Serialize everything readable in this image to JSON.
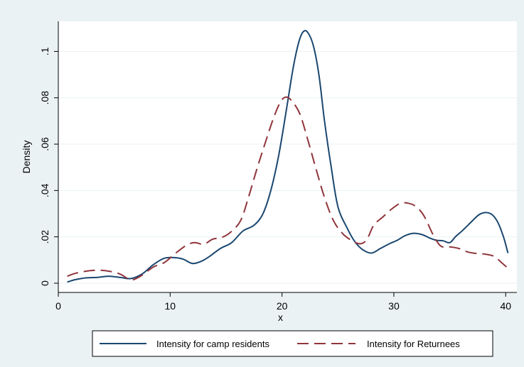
{
  "chart_data": {
    "type": "line",
    "title": "",
    "xlabel": "x",
    "ylabel": "Density",
    "xlim": [
      0,
      41
    ],
    "ylim": [
      -0.004,
      0.113
    ],
    "x_ticks": [
      0,
      10,
      20,
      30,
      40
    ],
    "x_tick_labels": [
      "0",
      "10",
      "20",
      "30",
      "40"
    ],
    "y_ticks": [
      0,
      0.02,
      0.04,
      0.06,
      0.08,
      0.1
    ],
    "y_tick_labels": [
      "0",
      ".02",
      ".04",
      ".06",
      ".08",
      ".1"
    ],
    "grid": true,
    "legend_position": "bottom",
    "colors": {
      "background": "#eaf2f3",
      "plot": "#ffffff",
      "grid": "#eaf2f3"
    },
    "series": [
      {
        "name": "Intensity for camp residents",
        "color": "#1a476f",
        "dash": "solid",
        "points": [
          [
            0.8,
            0.0005
          ],
          [
            1.5,
            0.0015
          ],
          [
            2.5,
            0.0023
          ],
          [
            3.5,
            0.0025
          ],
          [
            4.5,
            0.003
          ],
          [
            5.5,
            0.0025
          ],
          [
            6.5,
            0.002
          ],
          [
            7.5,
            0.004
          ],
          [
            8.5,
            0.008
          ],
          [
            9.5,
            0.0108
          ],
          [
            10.5,
            0.011
          ],
          [
            11.2,
            0.0103
          ],
          [
            12,
            0.0085
          ],
          [
            12.8,
            0.0095
          ],
          [
            13.5,
            0.0115
          ],
          [
            14.5,
            0.015
          ],
          [
            15.5,
            0.0175
          ],
          [
            16.5,
            0.0225
          ],
          [
            17.5,
            0.025
          ],
          [
            18.3,
            0.03
          ],
          [
            19,
            0.04
          ],
          [
            19.7,
            0.055
          ],
          [
            20.4,
            0.075
          ],
          [
            21,
            0.093
          ],
          [
            21.5,
            0.104
          ],
          [
            21.9,
            0.1085
          ],
          [
            22.3,
            0.1082
          ],
          [
            22.8,
            0.1025
          ],
          [
            23.3,
            0.09
          ],
          [
            23.8,
            0.07
          ],
          [
            24.4,
            0.05
          ],
          [
            25,
            0.033
          ],
          [
            25.8,
            0.024
          ],
          [
            26.5,
            0.018
          ],
          [
            27.2,
            0.0145
          ],
          [
            28,
            0.013
          ],
          [
            28.8,
            0.015
          ],
          [
            29.6,
            0.017
          ],
          [
            30.3,
            0.0185
          ],
          [
            31,
            0.0205
          ],
          [
            31.7,
            0.0215
          ],
          [
            32.5,
            0.021
          ],
          [
            33.2,
            0.0195
          ],
          [
            33.8,
            0.0185
          ],
          [
            34.4,
            0.0183
          ],
          [
            35,
            0.0175
          ],
          [
            35.5,
            0.02
          ],
          [
            36.2,
            0.023
          ],
          [
            37,
            0.0268
          ],
          [
            37.6,
            0.0295
          ],
          [
            38.2,
            0.0305
          ],
          [
            38.8,
            0.0295
          ],
          [
            39.3,
            0.0262
          ],
          [
            39.8,
            0.02
          ],
          [
            40.2,
            0.013
          ]
        ]
      },
      {
        "name": "Intensity for Returnees",
        "color": "#90353b",
        "dash": "long-dash",
        "points": [
          [
            0.8,
            0.003
          ],
          [
            1.5,
            0.0042
          ],
          [
            2.5,
            0.0052
          ],
          [
            3.5,
            0.0056
          ],
          [
            4.5,
            0.0052
          ],
          [
            5.5,
            0.004
          ],
          [
            6.2,
            0.002
          ],
          [
            6.7,
            0.0015
          ],
          [
            7.5,
            0.0035
          ],
          [
            8.5,
            0.007
          ],
          [
            9.5,
            0.009
          ],
          [
            10.5,
            0.013
          ],
          [
            11.5,
            0.0165
          ],
          [
            12.2,
            0.0175
          ],
          [
            13,
            0.0168
          ],
          [
            13.8,
            0.019
          ],
          [
            14.6,
            0.0197
          ],
          [
            15.4,
            0.022
          ],
          [
            16.3,
            0.027
          ],
          [
            17,
            0.037
          ],
          [
            17.8,
            0.05
          ],
          [
            18.6,
            0.062
          ],
          [
            19.3,
            0.072
          ],
          [
            19.9,
            0.0785
          ],
          [
            20.4,
            0.0803
          ],
          [
            20.9,
            0.0785
          ],
          [
            21.6,
            0.073
          ],
          [
            22.3,
            0.062
          ],
          [
            23,
            0.05
          ],
          [
            23.8,
            0.037
          ],
          [
            24.6,
            0.027
          ],
          [
            25.4,
            0.0215
          ],
          [
            26.2,
            0.0185
          ],
          [
            27,
            0.017
          ],
          [
            27.6,
            0.019
          ],
          [
            28.2,
            0.025
          ],
          [
            29,
            0.0285
          ],
          [
            29.8,
            0.032
          ],
          [
            30.6,
            0.0345
          ],
          [
            31.3,
            0.0345
          ],
          [
            32,
            0.033
          ],
          [
            32.7,
            0.029
          ],
          [
            33.5,
            0.021
          ],
          [
            34.2,
            0.016
          ],
          [
            35,
            0.0157
          ],
          [
            35.8,
            0.015
          ],
          [
            36.6,
            0.0135
          ],
          [
            37.4,
            0.0128
          ],
          [
            38.2,
            0.0125
          ],
          [
            39,
            0.0115
          ],
          [
            39.6,
            0.009
          ],
          [
            40.2,
            0.0065
          ]
        ]
      }
    ]
  }
}
